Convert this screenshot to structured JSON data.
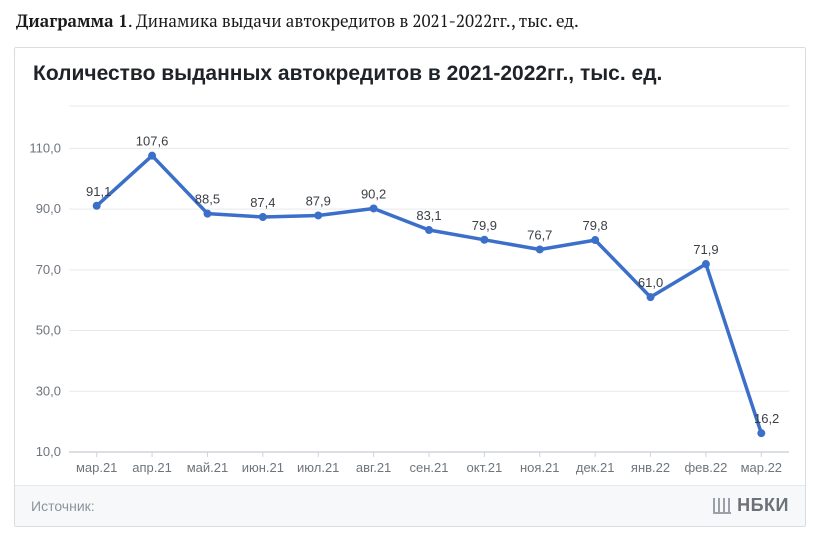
{
  "caption": {
    "prefix_bold": "Диаграмма 1",
    "rest": ". Динамика выдачи автокредитов в 2021-2022гг., тыс. ед."
  },
  "chart": {
    "type": "line",
    "title": "Количество выданных автокредитов в 2021-2022гг., тыс. ед.",
    "categories": [
      "мар.21",
      "апр.21",
      "май.21",
      "июн.21",
      "июл.21",
      "авг.21",
      "сен.21",
      "окт.21",
      "ноя.21",
      "дек.21",
      "янв.22",
      "фев.22",
      "мар.22"
    ],
    "values": [
      91.1,
      107.6,
      88.5,
      87.4,
      87.9,
      90.2,
      83.1,
      79.9,
      76.7,
      79.8,
      61.0,
      71.9,
      16.2
    ],
    "value_labels": [
      "91,1",
      "107,6",
      "88,5",
      "87,4",
      "87,9",
      "90,2",
      "83,1",
      "79,9",
      "76,7",
      "79,8",
      "61,0",
      "71,9",
      "16,2"
    ],
    "ylim": [
      10,
      120
    ],
    "ytick_step": 20,
    "ytick_labels": [
      "10,0",
      "30,0",
      "50,0",
      "70,0",
      "90,0",
      "110,0"
    ],
    "line_color": "#3b6fc9",
    "line_width": 3.5,
    "marker_fill": "#3b6fc9",
    "marker_radius": 4,
    "grid_color": "#e6e9ec",
    "axis_text_color": "#6e757c",
    "value_text_color": "#3a3f45",
    "background_color": "#ffffff",
    "title_color": "#1f2328",
    "title_fontsize": 21,
    "label_fontsize": 13
  },
  "footer": {
    "source_label": "Источник:",
    "logo_text": "НБКИ"
  }
}
